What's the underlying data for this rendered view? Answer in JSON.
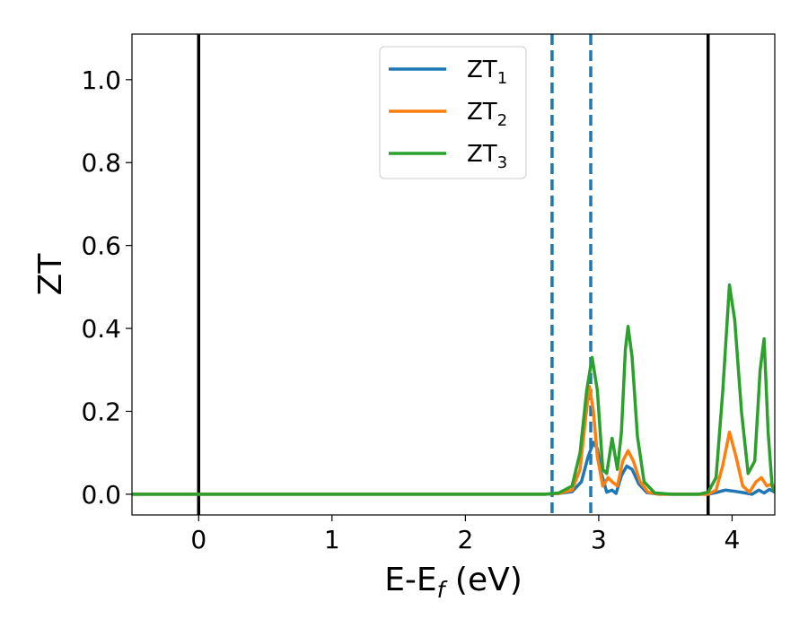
{
  "chart_data": {
    "type": "line",
    "xlabel": {
      "main": "E-E",
      "sub": "f",
      "tail": " (eV)"
    },
    "ylabel": "ZT",
    "xlim": [
      -0.5,
      4.32
    ],
    "ylim": [
      -0.05,
      1.11
    ],
    "xticks": [
      0,
      1,
      2,
      3,
      4
    ],
    "yticks": [
      0.0,
      0.2,
      0.4,
      0.6,
      0.8,
      1.0
    ],
    "xtick_labels": [
      "0",
      "1",
      "2",
      "3",
      "4"
    ],
    "ytick_labels": [
      "0.0",
      "0.2",
      "0.4",
      "0.6",
      "0.8",
      "1.0"
    ],
    "grid": false,
    "legend_position": "top-center",
    "vlines": [
      {
        "x": 0.0,
        "style": "solid",
        "color": "#000000"
      },
      {
        "x": 3.82,
        "style": "solid",
        "color": "#000000"
      },
      {
        "x": 2.65,
        "style": "dashed",
        "color": "#1f77b4"
      },
      {
        "x": 2.94,
        "style": "dashed",
        "color": "#1f77b4"
      }
    ],
    "series": [
      {
        "name": "ZT",
        "sub": "1",
        "color": "#1f77b4",
        "points": [
          [
            -0.5,
            0
          ],
          [
            2.6,
            0
          ],
          [
            2.7,
            0.002
          ],
          [
            2.8,
            0.006
          ],
          [
            2.87,
            0.03
          ],
          [
            2.92,
            0.09
          ],
          [
            2.96,
            0.125
          ],
          [
            2.99,
            0.11
          ],
          [
            3.02,
            0.05
          ],
          [
            3.06,
            0.005
          ],
          [
            3.1,
            0.01
          ],
          [
            3.13,
            0.002
          ],
          [
            3.17,
            0.045
          ],
          [
            3.21,
            0.068
          ],
          [
            3.25,
            0.06
          ],
          [
            3.3,
            0.025
          ],
          [
            3.36,
            0.004
          ],
          [
            3.45,
            0
          ],
          [
            3.82,
            0
          ],
          [
            3.88,
            0.004
          ],
          [
            3.95,
            0.01
          ],
          [
            4.0,
            0.008
          ],
          [
            4.08,
            0.004
          ],
          [
            4.15,
            0.0
          ],
          [
            4.2,
            0.01
          ],
          [
            4.24,
            0.003
          ],
          [
            4.28,
            0.012
          ],
          [
            4.32,
            0.005
          ]
        ]
      },
      {
        "name": "ZT",
        "sub": "2",
        "color": "#ff7f0e",
        "points": [
          [
            -0.5,
            0
          ],
          [
            2.6,
            0
          ],
          [
            2.7,
            0.002
          ],
          [
            2.8,
            0.01
          ],
          [
            2.86,
            0.06
          ],
          [
            2.9,
            0.18
          ],
          [
            2.93,
            0.26
          ],
          [
            2.96,
            0.2
          ],
          [
            2.99,
            0.09
          ],
          [
            3.03,
            0.02
          ],
          [
            3.07,
            0.04
          ],
          [
            3.1,
            0.03
          ],
          [
            3.14,
            0.02
          ],
          [
            3.18,
            0.08
          ],
          [
            3.22,
            0.105
          ],
          [
            3.26,
            0.08
          ],
          [
            3.31,
            0.03
          ],
          [
            3.37,
            0.005
          ],
          [
            3.45,
            0
          ],
          [
            3.82,
            0
          ],
          [
            3.88,
            0.01
          ],
          [
            3.93,
            0.07
          ],
          [
            3.98,
            0.15
          ],
          [
            4.03,
            0.09
          ],
          [
            4.08,
            0.02
          ],
          [
            4.13,
            0.005
          ],
          [
            4.18,
            0.03
          ],
          [
            4.22,
            0.04
          ],
          [
            4.26,
            0.02
          ],
          [
            4.3,
            0.025
          ],
          [
            4.32,
            0.01
          ]
        ]
      },
      {
        "name": "ZT",
        "sub": "3",
        "color": "#2ca02c",
        "points": [
          [
            -0.5,
            0
          ],
          [
            2.6,
            0
          ],
          [
            2.7,
            0.003
          ],
          [
            2.8,
            0.02
          ],
          [
            2.86,
            0.1
          ],
          [
            2.91,
            0.25
          ],
          [
            2.95,
            0.33
          ],
          [
            2.99,
            0.25
          ],
          [
            3.03,
            0.06
          ],
          [
            3.06,
            0.05
          ],
          [
            3.1,
            0.135
          ],
          [
            3.14,
            0.06
          ],
          [
            3.17,
            0.15
          ],
          [
            3.2,
            0.35
          ],
          [
            3.22,
            0.405
          ],
          [
            3.25,
            0.33
          ],
          [
            3.29,
            0.14
          ],
          [
            3.34,
            0.03
          ],
          [
            3.42,
            0.003
          ],
          [
            3.55,
            0
          ],
          [
            3.75,
            0
          ],
          [
            3.82,
            0.005
          ],
          [
            3.88,
            0.04
          ],
          [
            3.93,
            0.25
          ],
          [
            3.98,
            0.505
          ],
          [
            4.02,
            0.42
          ],
          [
            4.07,
            0.2
          ],
          [
            4.12,
            0.05
          ],
          [
            4.17,
            0.08
          ],
          [
            4.21,
            0.3
          ],
          [
            4.24,
            0.375
          ],
          [
            4.27,
            0.15
          ],
          [
            4.3,
            0.02
          ],
          [
            4.32,
            0.005
          ]
        ]
      }
    ]
  }
}
